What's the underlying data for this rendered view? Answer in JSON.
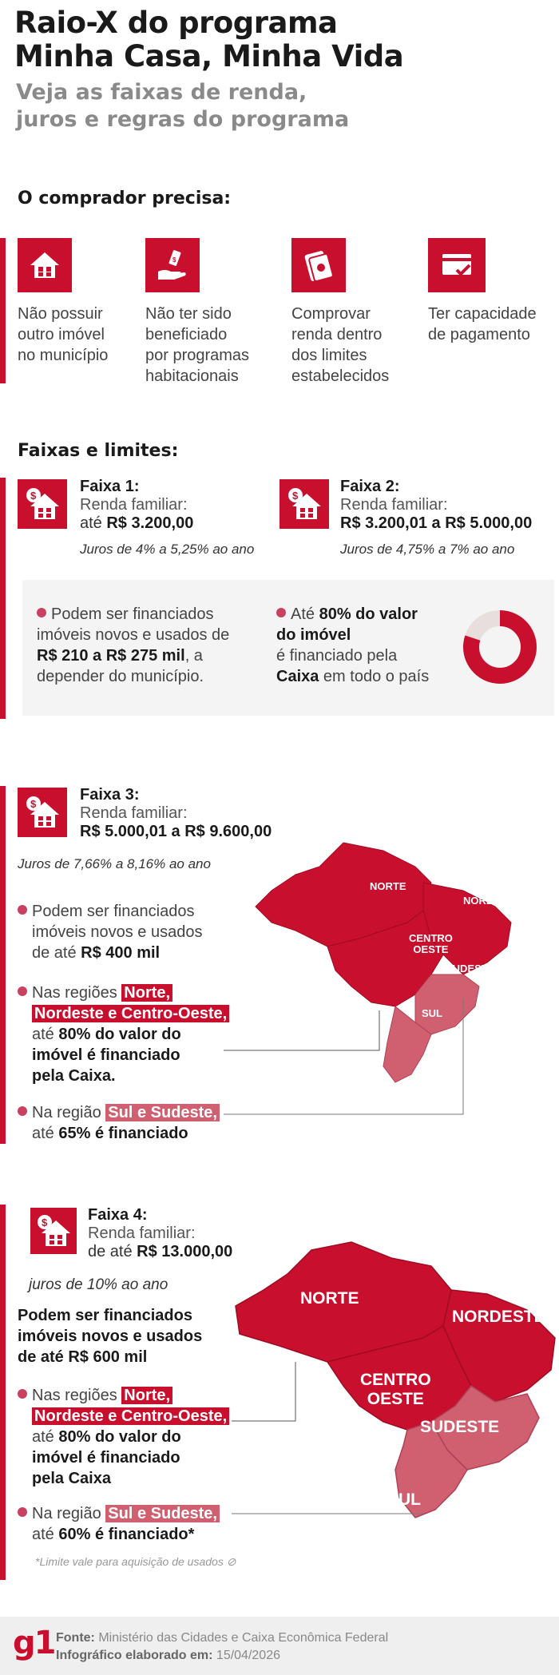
{
  "header": {
    "title_line1": "Raio-X do programa",
    "title_line2": "Minha Casa, Minha Vida",
    "subtitle_line1": "Veja as faixas de renda,",
    "subtitle_line2": "juros e regras do programa"
  },
  "requirements": {
    "heading": "O comprador precisa:",
    "items": [
      {
        "icon": "house-icon",
        "text": [
          "Não possuir",
          "outro imóvel",
          "no município"
        ]
      },
      {
        "icon": "hand-money-icon",
        "text": [
          "Não ter sido",
          "beneficiado",
          "por programas",
          "habitacionais"
        ]
      },
      {
        "icon": "cash-stack-icon",
        "text": [
          "Comprovar",
          "renda dentro",
          "dos limites",
          "estabelecidos"
        ]
      },
      {
        "icon": "card-check-icon",
        "text": [
          "Ter capacidade",
          "de pagamento"
        ]
      }
    ]
  },
  "limits": {
    "heading": "Faixas e limites:",
    "faixa1": {
      "title": "Faixa 1:",
      "label": "Renda familiar:",
      "prefix": "até ",
      "value": "R$ 3.200,00",
      "juros": "Juros de 4% a 5,25% ao ano"
    },
    "faixa2": {
      "title": "Faixa 2:",
      "label": "Renda familiar:",
      "value": "R$ 3.200,01 a R$ 5.000,00",
      "juros": "Juros de 4,75% a 7% ao ano"
    },
    "panel": {
      "left": [
        "Podem ser financiados",
        "imóveis novos e usados de",
        "R$ 210 a R$ 275 mil",
        ", a",
        "depender do município."
      ],
      "right_pre": "Até ",
      "right_bold1": "80% do valor",
      "right_bold2": "do imóvel",
      "right_line3": "é financiado pela",
      "right_bold3": "Caixa",
      "right_line4": " em todo o país",
      "donut_fraction": 0.8
    }
  },
  "faixa3": {
    "title": "Faixa 3:",
    "label": "Renda familiar:",
    "value": "R$ 5.000,01 a R$ 9.600,00",
    "juros": "Juros de 7,66% a 8,16% ao ano",
    "p1": [
      "Podem ser financiados",
      "imóveis novos e usados",
      "de até ",
      "R$ 400 mil"
    ],
    "p2_pre": "Nas regiões ",
    "p2_hl1": "Norte,",
    "p2_hl2": "Nordeste e Centro-Oeste,",
    "p2_l3": "até ",
    "p2_b3": "80% do valor do",
    "p2_b4": "imóvel é financiado",
    "p2_b5": "pela Caixa.",
    "p3_pre": "Na região ",
    "p3_hl": "Sul e Sudeste,",
    "p3_l2": "até ",
    "p3_b2": "65% é financiado",
    "regions": {
      "norte": "NORTE",
      "nordeste": "NORDESTE",
      "centro": [
        "CENTRO",
        "OESTE"
      ],
      "sudeste": "SUDESTE",
      "sul": "SUL"
    }
  },
  "faixa4": {
    "title": "Faixa 4:",
    "label": "Renda familiar:",
    "prefix": "de até ",
    "value": "R$ 13.000,00",
    "juros": "juros de 10% ao ano",
    "bold_lines": [
      "Podem ser financiados",
      "imóveis novos e usados",
      "de até R$ 600 mil"
    ],
    "p2_pre": "Nas regiões ",
    "p2_hl1": "Norte,",
    "p2_hl2": "Nordeste e Centro-Oeste,",
    "p2_l3": "até ",
    "p2_b3": "80% do valor do",
    "p2_b4": "imóvel é financiado",
    "p2_b5": "pela Caixa",
    "p3_pre": "Na região ",
    "p3_hl": "Sul e Sudeste,",
    "p3_l2": "até ",
    "p3_b2": "60% é financiado*",
    "footnote": "*Limite vale para aquisição de usados",
    "regions": {
      "norte": "NORTE",
      "nordeste": "NORDESTE",
      "centro": [
        "CENTRO",
        "OESTE"
      ],
      "sudeste": "SUDESTE",
      "sul": "SUL"
    }
  },
  "footer": {
    "logo": "g1",
    "source_label": "Fonte:",
    "source": " Ministério das Cidades e Caixa Econômica Federal",
    "date_label": "Infográfico elaborado em:",
    "date": " 15/04/2026"
  },
  "colors": {
    "brand_red": "#c8102e",
    "light_red": "#d06070",
    "panel_grey": "#f4f4f4"
  }
}
